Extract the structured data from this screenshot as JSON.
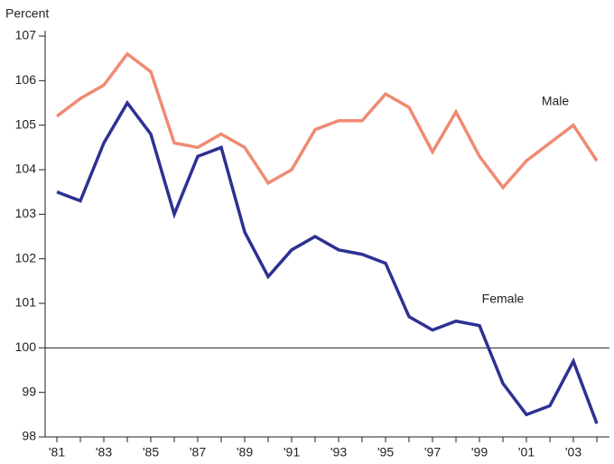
{
  "chart_data": {
    "type": "line",
    "y_label": "Percent",
    "categories": [
      "'81",
      null,
      "'83",
      null,
      "'85",
      null,
      "'87",
      null,
      "'89",
      null,
      "'91",
      null,
      "'93",
      null,
      "'95",
      null,
      "'97",
      null,
      "'99",
      null,
      "'01",
      null,
      "'03",
      null
    ],
    "series": [
      {
        "name": "Male",
        "color": "#f08a73",
        "values": [
          105.2,
          105.6,
          105.9,
          106.6,
          106.2,
          104.6,
          104.5,
          104.8,
          104.5,
          103.7,
          104.0,
          104.9,
          105.1,
          105.1,
          105.7,
          105.4,
          104.4,
          105.3,
          104.3,
          103.6,
          104.2,
          104.6,
          105.0,
          104.2
        ]
      },
      {
        "name": "Female",
        "color": "#2e3192",
        "values": [
          103.5,
          103.3,
          104.6,
          105.5,
          104.8,
          103.0,
          104.3,
          104.5,
          102.6,
          101.6,
          102.2,
          102.5,
          102.2,
          102.1,
          101.9,
          100.7,
          100.4,
          100.6,
          100.5,
          99.2,
          98.5,
          98.7,
          99.7,
          98.3
        ]
      }
    ],
    "ylim": [
      98,
      107
    ],
    "yticks": [
      98,
      99,
      100,
      101,
      102,
      103,
      104,
      105,
      106,
      107
    ],
    "reference_line": 100
  }
}
